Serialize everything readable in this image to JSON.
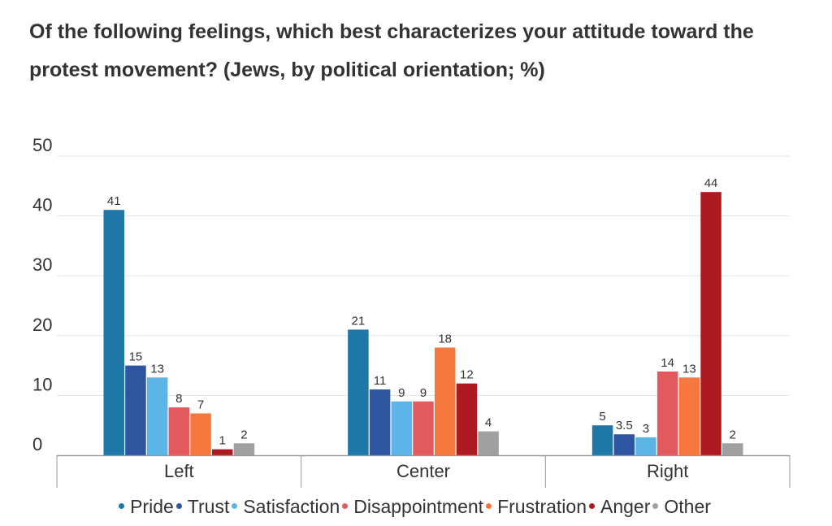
{
  "chart_data": {
    "type": "bar",
    "title": "Of the following feelings, which best characterizes your attitude toward the protest movement? (Jews, by political orientation; %)",
    "categories": [
      "Left",
      "Center",
      "Right"
    ],
    "ylim": [
      0,
      50
    ],
    "yticks": [
      "0",
      "10",
      "20",
      "30",
      "40",
      "50"
    ],
    "grid": true,
    "legend_position": "bottom",
    "series": [
      {
        "name": "Pride",
        "color": "#1f77a8",
        "values": [
          41,
          21,
          5
        ],
        "labels": [
          "41",
          "21",
          "5"
        ]
      },
      {
        "name": "Trust",
        "color": "#2e56a0",
        "values": [
          15,
          11,
          3.5
        ],
        "labels": [
          "15",
          "11",
          "3.5"
        ]
      },
      {
        "name": "Satisfaction",
        "color": "#5bb5e6",
        "values": [
          13,
          9,
          3
        ],
        "labels": [
          "13",
          "9",
          "3"
        ]
      },
      {
        "name": "Disappointment",
        "color": "#e05a5e",
        "values": [
          8,
          9,
          14
        ],
        "labels": [
          "8",
          "9",
          "14"
        ]
      },
      {
        "name": "Frustration",
        "color": "#f7783e",
        "values": [
          7,
          18,
          13
        ],
        "labels": [
          "7",
          "18",
          "13"
        ]
      },
      {
        "name": "Anger",
        "color": "#ad1a21",
        "values": [
          1,
          12,
          44
        ],
        "labels": [
          "1",
          "12",
          "44"
        ]
      },
      {
        "name": "Other",
        "color": "#a0a0a0",
        "values": [
          2,
          4,
          2
        ],
        "labels": [
          "2",
          "4",
          "2"
        ]
      }
    ]
  }
}
